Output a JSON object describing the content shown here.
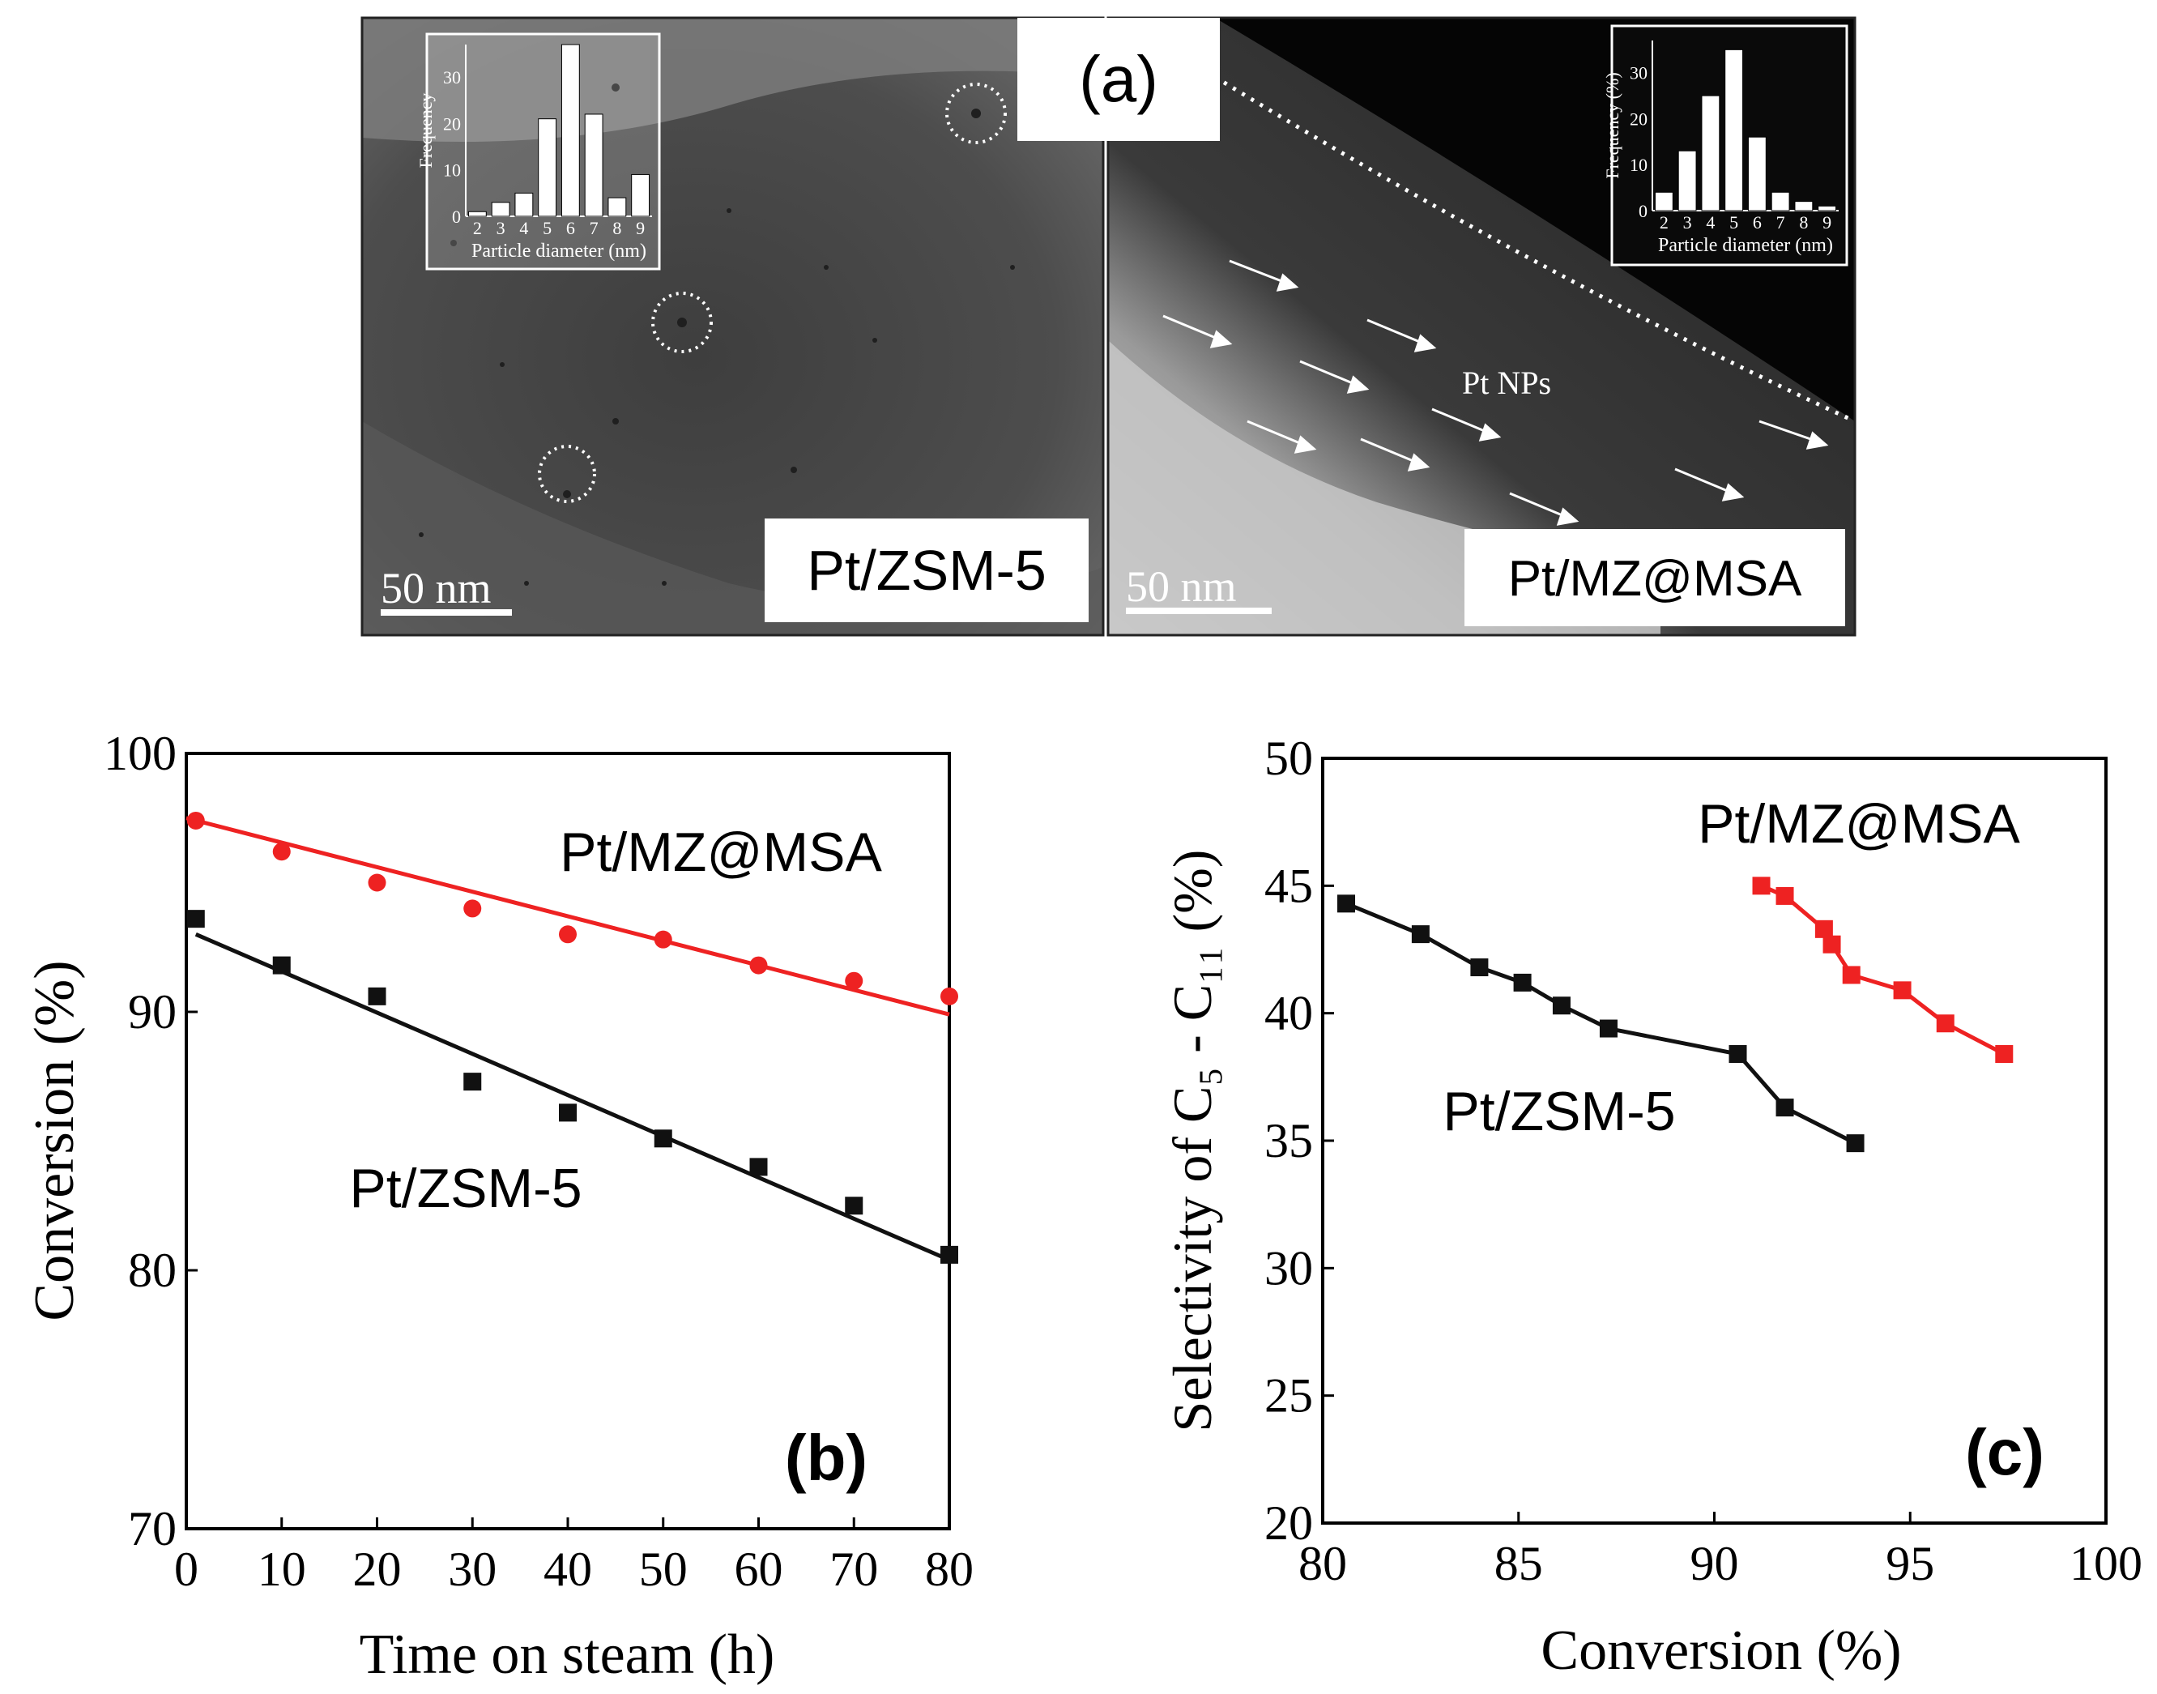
{
  "figure": {
    "panel_a": {
      "label": "(a)",
      "left": {
        "sample_label": "Pt/ZSM-5",
        "scale_bar": "50 nm",
        "inset": {
          "ylabel": "Frequency",
          "ylabel_full": "Frequency (%)",
          "xlabel": "Particle diameter (nm)",
          "yticks": [
            "0",
            "10",
            "20",
            "30"
          ],
          "xticks": [
            "2",
            "3",
            "4",
            "5",
            "6",
            "7",
            "8",
            "9"
          ],
          "values": [
            1,
            3,
            5,
            21,
            37,
            22,
            4,
            9
          ],
          "ylim": [
            0,
            37
          ]
        }
      },
      "right": {
        "sample_label": "Pt/MZ@MSA",
        "scale_bar": "50 nm",
        "annotation": "Pt NPs",
        "inset": {
          "ylabel": "Frequency (%)",
          "xlabel": "Particle diameter (nm)",
          "yticks": [
            "0",
            "10",
            "20",
            "30"
          ],
          "xticks": [
            "2",
            "3",
            "4",
            "5",
            "6",
            "7",
            "8",
            "9"
          ],
          "values": [
            4,
            13,
            25,
            35,
            16,
            4,
            2,
            1
          ],
          "ylim": [
            0,
            37
          ]
        }
      }
    }
  },
  "chart_data": [
    {
      "type": "scatter",
      "panel": "(b)",
      "xlabel": "Time on steam (h)",
      "ylabel": "Conversion (%)",
      "xlim": [
        0,
        80
      ],
      "ylim": [
        70,
        100
      ],
      "xticks": [
        "0",
        "10",
        "20",
        "30",
        "40",
        "50",
        "60",
        "70",
        "80"
      ],
      "yticks": [
        "70",
        "80",
        "90",
        "100"
      ],
      "series": [
        {
          "name": "Pt/MZ@MSA",
          "color": "#ee2222",
          "marker": "circle",
          "x": [
            1,
            10,
            20,
            30,
            40,
            50,
            60,
            70,
            80
          ],
          "y": [
            97.4,
            96.2,
            95.0,
            94.0,
            93.0,
            92.8,
            91.8,
            91.2,
            90.6
          ],
          "fit": [
            [
              0,
              97.5
            ],
            [
              80,
              89.9
            ]
          ]
        },
        {
          "name": "Pt/ZSM-5",
          "color": "#111111",
          "marker": "square",
          "x": [
            1,
            10,
            20,
            30,
            40,
            50,
            60,
            70,
            80
          ],
          "y": [
            93.6,
            91.8,
            90.6,
            87.3,
            86.1,
            85.1,
            84.0,
            82.5,
            80.6
          ],
          "fit": [
            [
              1,
              93.0
            ],
            [
              80,
              80.4
            ]
          ]
        }
      ]
    },
    {
      "type": "line",
      "panel": "(c)",
      "xlabel": "Conversion (%)",
      "ylabel": "Selectivity of C₅ - C₁₁ (%)",
      "xlim": [
        80,
        100
      ],
      "ylim": [
        20,
        50
      ],
      "xticks": [
        "80",
        "85",
        "90",
        "95",
        "100"
      ],
      "yticks": [
        "20",
        "25",
        "30",
        "35",
        "40",
        "45",
        "50"
      ],
      "series": [
        {
          "name": "Pt/ZSM-5",
          "color": "#111111",
          "marker": "square",
          "x": [
            80.6,
            82.5,
            84.0,
            85.1,
            86.1,
            87.3,
            90.6,
            91.8,
            93.6
          ],
          "y": [
            44.3,
            43.1,
            41.8,
            41.2,
            40.3,
            39.4,
            38.4,
            36.3,
            34.9
          ]
        },
        {
          "name": "Pt/MZ@MSA",
          "color": "#ee2222",
          "marker": "square",
          "x": [
            91.2,
            91.8,
            92.8,
            93.0,
            93.5,
            94.8,
            95.9,
            97.4
          ],
          "y": [
            45.0,
            44.6,
            43.3,
            42.7,
            41.5,
            40.9,
            39.6,
            38.4
          ]
        }
      ]
    }
  ]
}
